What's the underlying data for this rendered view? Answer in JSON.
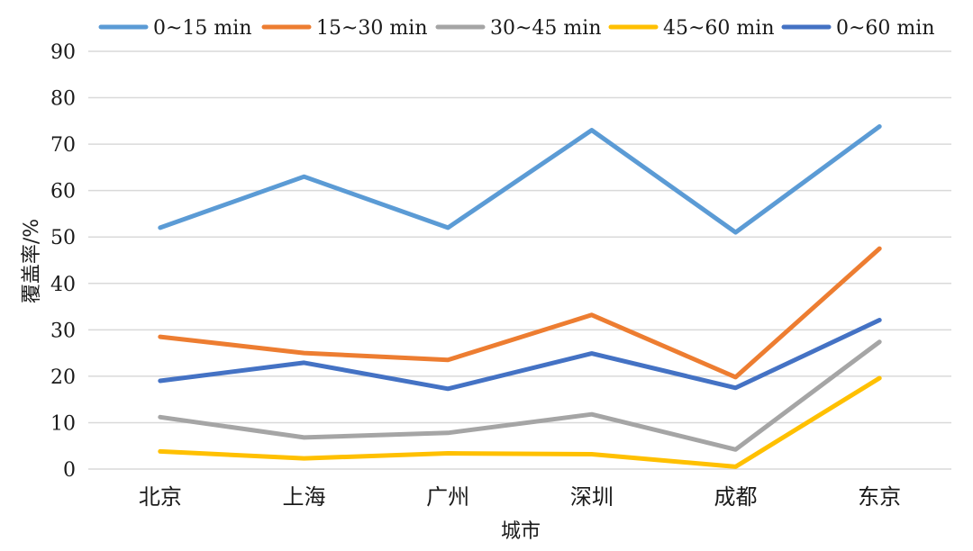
{
  "chart_data": {
    "type": "line",
    "categories": [
      "北京",
      "上海",
      "广州",
      "深圳",
      "成都",
      "东京"
    ],
    "xlabel": "城市",
    "ylabel": "覆盖率/%",
    "ylim": [
      0,
      90
    ],
    "yticks": [
      0,
      10,
      20,
      30,
      40,
      50,
      60,
      70,
      80,
      90
    ],
    "grid": true,
    "legend_position": "top",
    "series": [
      {
        "name": "0~15 min",
        "color": "#5b9bd5",
        "values": [
          52,
          63,
          52,
          73,
          51,
          73.8
        ]
      },
      {
        "name": "15~30 min",
        "color": "#ed7d31",
        "values": [
          28.5,
          25,
          23.5,
          33.2,
          19.8,
          47.5
        ]
      },
      {
        "name": "30~45 min",
        "color": "#a5a5a5",
        "values": [
          11.2,
          6.8,
          7.8,
          11.8,
          4.2,
          27.4
        ]
      },
      {
        "name": "45~60 min",
        "color": "#ffc000",
        "values": [
          3.8,
          2.3,
          3.4,
          3.2,
          0.5,
          19.6
        ]
      },
      {
        "name": "0~60 min",
        "color": "#4472c4",
        "values": [
          19,
          22.9,
          17.3,
          24.9,
          17.5,
          32.1
        ]
      }
    ]
  }
}
